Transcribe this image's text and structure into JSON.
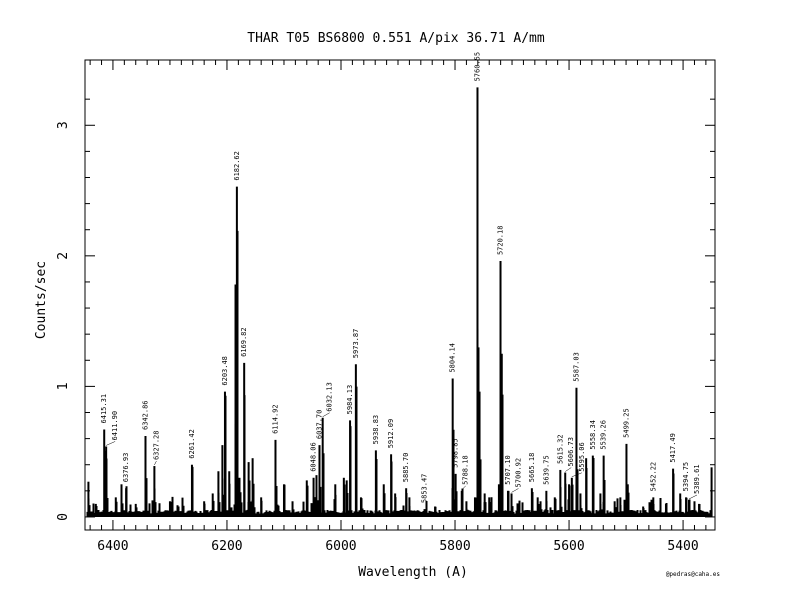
{
  "chart_data": {
    "type": "line",
    "title": "THAR  T05  BS6800  0.551 A/pix  36.71 A/mm",
    "xlabel": "Wavelength (A)",
    "ylabel": "Counts/sec",
    "xlim": [
      6449,
      5344
    ],
    "ylim": [
      -0.1,
      3.5
    ],
    "xticks": [
      6400,
      6200,
      6000,
      5800,
      5600,
      5400
    ],
    "yticks": [
      0,
      1,
      2,
      3
    ],
    "grid": false,
    "credit": "@pedras@caha.es",
    "labeled_lines": [
      {
        "label": "6415.31",
        "x": 6415.3,
        "y": 0.67
      },
      {
        "label": "6411.90",
        "x": 6411.9,
        "y": 0.54
      },
      {
        "label": "6376.93",
        "x": 6376.9,
        "y": 0.22
      },
      {
        "label": "6342.86",
        "x": 6342.9,
        "y": 0.62
      },
      {
        "label": "6327.28",
        "x": 6327.3,
        "y": 0.39
      },
      {
        "label": "6261.42",
        "x": 6261.4,
        "y": 0.4
      },
      {
        "label": "6203.48",
        "x": 6203.5,
        "y": 0.96
      },
      {
        "label": "6182.62",
        "x": 6182.6,
        "y": 2.53
      },
      {
        "label": "6169.82",
        "x": 6169.8,
        "y": 1.18
      },
      {
        "label": "6114.92",
        "x": 6114.9,
        "y": 0.59
      },
      {
        "label": "6048.06",
        "x": 6048.1,
        "y": 0.3
      },
      {
        "label": "6037.70",
        "x": 6037.7,
        "y": 0.55
      },
      {
        "label": "6032.13",
        "x": 6032.1,
        "y": 0.76
      },
      {
        "label": "5984.13",
        "x": 5984.1,
        "y": 0.74
      },
      {
        "label": "5973.87",
        "x": 5973.9,
        "y": 1.17
      },
      {
        "label": "5938.83",
        "x": 5938.8,
        "y": 0.51
      },
      {
        "label": "5912.09",
        "x": 5912.1,
        "y": 0.48
      },
      {
        "label": "5885.70",
        "x": 5885.7,
        "y": 0.22
      },
      {
        "label": "5853.47",
        "x": 5853.5,
        "y": 0.06
      },
      {
        "label": "5804.14",
        "x": 5804.1,
        "y": 1.06
      },
      {
        "label": "5798.85",
        "x": 5798.9,
        "y": 0.33
      },
      {
        "label": "5788.18",
        "x": 5788.2,
        "y": 0.2
      },
      {
        "label": "5760.55",
        "x": 5760.6,
        "y": 3.29
      },
      {
        "label": "5720.18",
        "x": 5720.2,
        "y": 1.96
      },
      {
        "label": "5707.10",
        "x": 5707.1,
        "y": 0.2
      },
      {
        "label": "5700.92",
        "x": 5700.9,
        "y": 0.18
      },
      {
        "label": "5665.18",
        "x": 5665.2,
        "y": 0.22
      },
      {
        "label": "5639.75",
        "x": 5639.8,
        "y": 0.2
      },
      {
        "label": "5615.32",
        "x": 5615.3,
        "y": 0.36
      },
      {
        "label": "5606.73",
        "x": 5606.7,
        "y": 0.34
      },
      {
        "label": "5595.06",
        "x": 5595.1,
        "y": 0.3
      },
      {
        "label": "5587.03",
        "x": 5587.0,
        "y": 0.99
      },
      {
        "label": "5558.34",
        "x": 5558.3,
        "y": 0.47
      },
      {
        "label": "5539.26",
        "x": 5539.3,
        "y": 0.47
      },
      {
        "label": "5499.25",
        "x": 5499.3,
        "y": 0.56
      },
      {
        "label": "5452.22",
        "x": 5452.2,
        "y": 0.15
      },
      {
        "label": "5417.49",
        "x": 5417.5,
        "y": 0.37
      },
      {
        "label": "5394.75",
        "x": 5394.8,
        "y": 0.15
      },
      {
        "label": "5389.61",
        "x": 5389.6,
        "y": 0.13
      }
    ],
    "unlabeled_lines": [
      [
        6443,
        0.27
      ],
      [
        6430,
        0.1
      ],
      [
        6395,
        0.15
      ],
      [
        6385,
        0.25
      ],
      [
        6360,
        0.1
      ],
      [
        6300,
        0.12
      ],
      [
        6285,
        0.08
      ],
      [
        6240,
        0.12
      ],
      [
        6225,
        0.18
      ],
      [
        6215,
        0.35
      ],
      [
        6208,
        0.55
      ],
      [
        6196,
        0.35
      ],
      [
        6185,
        1.78
      ],
      [
        6178,
        0.3
      ],
      [
        6162,
        0.42
      ],
      [
        6155,
        0.45
      ],
      [
        6140,
        0.15
      ],
      [
        6100,
        0.25
      ],
      [
        6085,
        0.12
      ],
      [
        6060,
        0.28
      ],
      [
        6043,
        0.32
      ],
      [
        6010,
        0.25
      ],
      [
        5995,
        0.3
      ],
      [
        5990,
        0.28
      ],
      [
        5965,
        0.15
      ],
      [
        5925,
        0.25
      ],
      [
        5905,
        0.18
      ],
      [
        5880,
        0.15
      ],
      [
        5835,
        0.08
      ],
      [
        5780,
        0.12
      ],
      [
        5765,
        0.15
      ],
      [
        5757,
        0.96
      ],
      [
        5748,
        0.18
      ],
      [
        5740,
        0.15
      ],
      [
        5723,
        0.25
      ],
      [
        5718,
        1.25
      ],
      [
        5690,
        0.1
      ],
      [
        5655,
        0.15
      ],
      [
        5650,
        0.12
      ],
      [
        5625,
        0.15
      ],
      [
        5600,
        0.25
      ],
      [
        5580,
        0.18
      ],
      [
        5570,
        0.45
      ],
      [
        5545,
        0.18
      ],
      [
        5520,
        0.12
      ],
      [
        5510,
        0.15
      ],
      [
        5497,
        0.25
      ],
      [
        5470,
        0.08
      ],
      [
        5430,
        0.1
      ],
      [
        5405,
        0.18
      ],
      [
        5380,
        0.12
      ],
      [
        5372,
        0.1
      ],
      [
        5350,
        0.38
      ]
    ]
  }
}
